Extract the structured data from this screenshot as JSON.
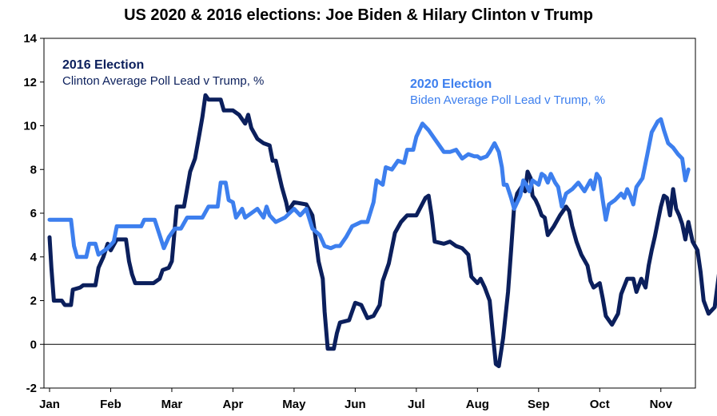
{
  "chart_data": {
    "type": "line",
    "title": "US 2020 & 2016 elections: Joe Biden & Hilary Clinton v Trump",
    "xlabel": "",
    "ylabel": "",
    "ylim": [
      -2,
      14
    ],
    "yticks": [
      -2,
      0,
      2,
      4,
      6,
      8,
      10,
      12,
      14
    ],
    "xlim": [
      0,
      10.5
    ],
    "x_ticks": [
      {
        "label": "Jan",
        "pos": 0
      },
      {
        "label": "Feb",
        "pos": 1
      },
      {
        "label": "Mar",
        "pos": 2
      },
      {
        "label": "Apr",
        "pos": 3
      },
      {
        "label": "May",
        "pos": 4
      },
      {
        "label": "Jun",
        "pos": 5
      },
      {
        "label": "Jul",
        "pos": 6
      },
      {
        "label": "Aug",
        "pos": 7
      },
      {
        "label": "Sep",
        "pos": 8
      },
      {
        "label": "Oct",
        "pos": 9
      },
      {
        "label": "Nov",
        "pos": 10
      }
    ],
    "grid": false,
    "series": [
      {
        "name": "Clinton Average Poll Lead v Trump, %",
        "group": "2016 Election",
        "color": "#0b1f5c",
        "points": [
          [
            0.0,
            4.9
          ],
          [
            0.03,
            3.5
          ],
          [
            0.07,
            2.0
          ],
          [
            0.2,
            2.0
          ],
          [
            0.25,
            1.8
          ],
          [
            0.35,
            1.8
          ],
          [
            0.38,
            2.5
          ],
          [
            0.5,
            2.6
          ],
          [
            0.55,
            2.7
          ],
          [
            0.75,
            2.7
          ],
          [
            0.8,
            3.5
          ],
          [
            0.88,
            4.0
          ],
          [
            0.95,
            4.6
          ],
          [
            1.0,
            4.3
          ],
          [
            1.1,
            4.8
          ],
          [
            1.25,
            4.8
          ],
          [
            1.3,
            3.8
          ],
          [
            1.35,
            3.2
          ],
          [
            1.4,
            2.8
          ],
          [
            1.7,
            2.8
          ],
          [
            1.8,
            3.0
          ],
          [
            1.85,
            3.4
          ],
          [
            1.95,
            3.5
          ],
          [
            2.0,
            3.8
          ],
          [
            2.08,
            6.3
          ],
          [
            2.2,
            6.3
          ],
          [
            2.3,
            7.9
          ],
          [
            2.38,
            8.5
          ],
          [
            2.45,
            9.6
          ],
          [
            2.5,
            10.4
          ],
          [
            2.55,
            11.4
          ],
          [
            2.6,
            11.2
          ],
          [
            2.8,
            11.2
          ],
          [
            2.85,
            10.7
          ],
          [
            3.0,
            10.7
          ],
          [
            3.1,
            10.5
          ],
          [
            3.2,
            10.1
          ],
          [
            3.25,
            10.5
          ],
          [
            3.3,
            9.9
          ],
          [
            3.4,
            9.4
          ],
          [
            3.5,
            9.2
          ],
          [
            3.6,
            9.1
          ],
          [
            3.65,
            8.4
          ],
          [
            3.7,
            8.4
          ],
          [
            3.8,
            7.2
          ],
          [
            3.87,
            6.5
          ],
          [
            3.9,
            6.1
          ],
          [
            4.0,
            6.5
          ],
          [
            4.2,
            6.4
          ],
          [
            4.3,
            5.9
          ],
          [
            4.35,
            4.9
          ],
          [
            4.4,
            3.8
          ],
          [
            4.47,
            3.0
          ],
          [
            4.5,
            1.5
          ],
          [
            4.55,
            -0.2
          ],
          [
            4.65,
            -0.2
          ],
          [
            4.7,
            0.5
          ],
          [
            4.75,
            1.0
          ],
          [
            4.9,
            1.1
          ],
          [
            5.0,
            1.9
          ],
          [
            5.1,
            1.8
          ],
          [
            5.2,
            1.2
          ],
          [
            5.3,
            1.3
          ],
          [
            5.4,
            1.8
          ],
          [
            5.45,
            2.9
          ],
          [
            5.55,
            3.7
          ],
          [
            5.65,
            5.1
          ],
          [
            5.75,
            5.6
          ],
          [
            5.85,
            5.9
          ],
          [
            6.0,
            5.9
          ],
          [
            6.15,
            6.7
          ],
          [
            6.2,
            6.8
          ],
          [
            6.25,
            5.9
          ],
          [
            6.3,
            4.7
          ],
          [
            6.45,
            4.6
          ],
          [
            6.55,
            4.7
          ],
          [
            6.65,
            4.5
          ],
          [
            6.75,
            4.4
          ],
          [
            6.85,
            4.1
          ],
          [
            6.9,
            3.1
          ],
          [
            7.0,
            2.8
          ],
          [
            7.05,
            3.0
          ],
          [
            7.12,
            2.6
          ],
          [
            7.2,
            2.0
          ],
          [
            7.25,
            0.5
          ],
          [
            7.3,
            -0.9
          ],
          [
            7.35,
            -1.0
          ],
          [
            7.42,
            0.3
          ],
          [
            7.5,
            2.4
          ],
          [
            7.55,
            4.3
          ],
          [
            7.6,
            6.3
          ],
          [
            7.65,
            6.9
          ],
          [
            7.72,
            7.2
          ],
          [
            7.78,
            7.0
          ],
          [
            7.82,
            7.9
          ],
          [
            7.87,
            7.6
          ],
          [
            7.9,
            6.8
          ],
          [
            7.95,
            6.6
          ],
          [
            8.0,
            6.3
          ],
          [
            8.05,
            5.9
          ],
          [
            8.1,
            5.8
          ],
          [
            8.15,
            5.0
          ],
          [
            8.25,
            5.4
          ],
          [
            8.35,
            5.9
          ],
          [
            8.45,
            6.3
          ],
          [
            8.5,
            6.1
          ],
          [
            8.55,
            5.4
          ],
          [
            8.62,
            4.7
          ],
          [
            8.7,
            4.1
          ],
          [
            8.8,
            3.6
          ],
          [
            8.85,
            2.9
          ],
          [
            8.9,
            2.6
          ],
          [
            9.0,
            2.8
          ],
          [
            9.05,
            2.1
          ],
          [
            9.1,
            1.3
          ],
          [
            9.2,
            0.9
          ],
          [
            9.3,
            1.4
          ],
          [
            9.35,
            2.3
          ],
          [
            9.45,
            3.0
          ],
          [
            9.55,
            3.0
          ],
          [
            9.6,
            2.4
          ],
          [
            9.68,
            3.0
          ],
          [
            9.75,
            2.6
          ],
          [
            9.8,
            3.6
          ],
          [
            9.85,
            4.3
          ],
          [
            9.9,
            4.9
          ],
          [
            9.95,
            5.6
          ],
          [
            10.0,
            6.3
          ],
          [
            10.05,
            6.8
          ],
          [
            10.1,
            6.7
          ],
          [
            10.15,
            5.9
          ],
          [
            10.2,
            7.1
          ],
          [
            10.25,
            6.2
          ],
          [
            10.3,
            5.9
          ],
          [
            10.35,
            5.5
          ],
          [
            10.4,
            4.8
          ],
          [
            10.45,
            5.6
          ],
          [
            10.52,
            4.7
          ],
          [
            10.6,
            4.3
          ],
          [
            10.65,
            3.3
          ],
          [
            10.7,
            2.0
          ],
          [
            10.78,
            1.4
          ],
          [
            10.88,
            1.7
          ],
          [
            10.95,
            3.2
          ],
          [
            11.0,
            3.3
          ]
        ]
      },
      {
        "name": "Biden Average Poll Lead v Trump, %",
        "group": "2020 Election",
        "color": "#3d7fee",
        "points": [
          [
            0.0,
            5.7
          ],
          [
            0.35,
            5.7
          ],
          [
            0.4,
            4.5
          ],
          [
            0.45,
            4.0
          ],
          [
            0.6,
            4.0
          ],
          [
            0.65,
            4.6
          ],
          [
            0.75,
            4.6
          ],
          [
            0.8,
            4.1
          ],
          [
            0.95,
            4.4
          ],
          [
            1.05,
            4.7
          ],
          [
            1.1,
            5.4
          ],
          [
            1.5,
            5.4
          ],
          [
            1.55,
            5.7
          ],
          [
            1.72,
            5.7
          ],
          [
            1.8,
            5.0
          ],
          [
            1.87,
            4.4
          ],
          [
            1.95,
            4.9
          ],
          [
            2.05,
            5.3
          ],
          [
            2.15,
            5.3
          ],
          [
            2.25,
            5.8
          ],
          [
            2.5,
            5.8
          ],
          [
            2.6,
            6.3
          ],
          [
            2.75,
            6.3
          ],
          [
            2.8,
            7.4
          ],
          [
            2.88,
            7.4
          ],
          [
            2.93,
            6.6
          ],
          [
            3.0,
            6.5
          ],
          [
            3.05,
            5.8
          ],
          [
            3.15,
            6.2
          ],
          [
            3.2,
            5.8
          ],
          [
            3.3,
            6.0
          ],
          [
            3.4,
            6.2
          ],
          [
            3.5,
            5.8
          ],
          [
            3.55,
            6.3
          ],
          [
            3.6,
            5.9
          ],
          [
            3.7,
            5.6
          ],
          [
            3.85,
            5.8
          ],
          [
            4.0,
            6.2
          ],
          [
            4.1,
            5.9
          ],
          [
            4.2,
            6.2
          ],
          [
            4.3,
            5.3
          ],
          [
            4.42,
            5.0
          ],
          [
            4.5,
            4.5
          ],
          [
            4.6,
            4.4
          ],
          [
            4.68,
            4.5
          ],
          [
            4.75,
            4.5
          ],
          [
            4.85,
            4.9
          ],
          [
            4.95,
            5.4
          ],
          [
            5.1,
            5.6
          ],
          [
            5.2,
            5.6
          ],
          [
            5.3,
            6.5
          ],
          [
            5.35,
            7.5
          ],
          [
            5.45,
            7.3
          ],
          [
            5.5,
            8.1
          ],
          [
            5.6,
            8.0
          ],
          [
            5.7,
            8.4
          ],
          [
            5.8,
            8.3
          ],
          [
            5.85,
            8.9
          ],
          [
            5.95,
            8.9
          ],
          [
            6.0,
            9.5
          ],
          [
            6.1,
            10.1
          ],
          [
            6.2,
            9.8
          ],
          [
            6.3,
            9.4
          ],
          [
            6.45,
            8.8
          ],
          [
            6.55,
            8.8
          ],
          [
            6.65,
            8.9
          ],
          [
            6.75,
            8.5
          ],
          [
            6.85,
            8.7
          ],
          [
            6.95,
            8.6
          ],
          [
            7.0,
            8.6
          ],
          [
            7.05,
            8.5
          ],
          [
            7.15,
            8.6
          ],
          [
            7.2,
            8.8
          ],
          [
            7.28,
            9.2
          ],
          [
            7.35,
            8.8
          ],
          [
            7.4,
            8.1
          ],
          [
            7.43,
            7.3
          ],
          [
            7.48,
            7.3
          ],
          [
            7.55,
            6.7
          ],
          [
            7.6,
            6.2
          ],
          [
            7.7,
            6.8
          ],
          [
            7.75,
            7.5
          ],
          [
            7.8,
            7.3
          ],
          [
            7.85,
            7.0
          ],
          [
            7.9,
            7.5
          ],
          [
            8.0,
            7.3
          ],
          [
            8.05,
            7.8
          ],
          [
            8.1,
            7.7
          ],
          [
            8.15,
            7.4
          ],
          [
            8.2,
            7.8
          ],
          [
            8.27,
            7.4
          ],
          [
            8.32,
            7.2
          ],
          [
            8.38,
            6.3
          ],
          [
            8.45,
            6.9
          ],
          [
            8.55,
            7.1
          ],
          [
            8.65,
            7.4
          ],
          [
            8.75,
            7.0
          ],
          [
            8.85,
            7.5
          ],
          [
            8.9,
            7.1
          ],
          [
            8.95,
            7.8
          ],
          [
            9.0,
            7.6
          ],
          [
            9.05,
            6.6
          ],
          [
            9.1,
            5.7
          ],
          [
            9.15,
            6.4
          ],
          [
            9.25,
            6.6
          ],
          [
            9.35,
            6.9
          ],
          [
            9.4,
            6.7
          ],
          [
            9.45,
            7.1
          ],
          [
            9.5,
            6.8
          ],
          [
            9.55,
            6.4
          ],
          [
            9.6,
            7.2
          ],
          [
            9.7,
            7.6
          ],
          [
            9.78,
            8.7
          ],
          [
            9.85,
            9.7
          ],
          [
            9.95,
            10.2
          ],
          [
            10.0,
            10.3
          ],
          [
            10.05,
            9.8
          ],
          [
            10.12,
            9.2
          ],
          [
            10.2,
            9.0
          ],
          [
            10.28,
            8.7
          ],
          [
            10.35,
            8.5
          ],
          [
            10.4,
            7.5
          ],
          [
            10.45,
            8.0
          ]
        ]
      }
    ],
    "annotations": [
      {
        "title": "2016 Election",
        "text": "Clinton Average Poll Lead v Trump, %"
      },
      {
        "title": "2020 Election",
        "text": "Biden Average Poll Lead v Trump, %"
      }
    ]
  }
}
